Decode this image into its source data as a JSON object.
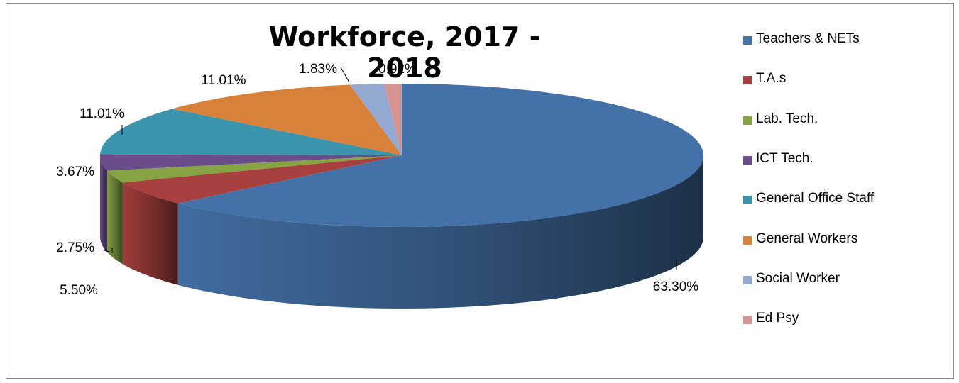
{
  "chart_data": {
    "type": "pie",
    "title": "Workforce, 2017 - 2018",
    "slices": [
      {
        "name": "Teachers & NETs",
        "value": 63.3,
        "label": "63.30%",
        "color": "#4472a8"
      },
      {
        "name": "T.A.s",
        "value": 5.5,
        "label": "5.50%",
        "color": "#a8403f"
      },
      {
        "name": "Lab. Tech.",
        "value": 2.75,
        "label": "2.75%",
        "color": "#86a444"
      },
      {
        "name": "ICT Tech.",
        "value": 3.67,
        "label": "3.67%",
        "color": "#6b4d8c"
      },
      {
        "name": "General Office Staff",
        "value": 11.01,
        "label": "11.01%",
        "color": "#3d95ad"
      },
      {
        "name": "General Workers",
        "value": 11.01,
        "label": "11.01%",
        "color": "#d7813b"
      },
      {
        "name": "Social Worker",
        "value": 1.83,
        "label": "1.83%",
        "color": "#93a9d2"
      },
      {
        "name": "Ed Psy",
        "value": 0.92,
        "label": "0.92%",
        "color": "#d59492"
      }
    ],
    "legend_position": "right",
    "style": "3d-pie"
  }
}
